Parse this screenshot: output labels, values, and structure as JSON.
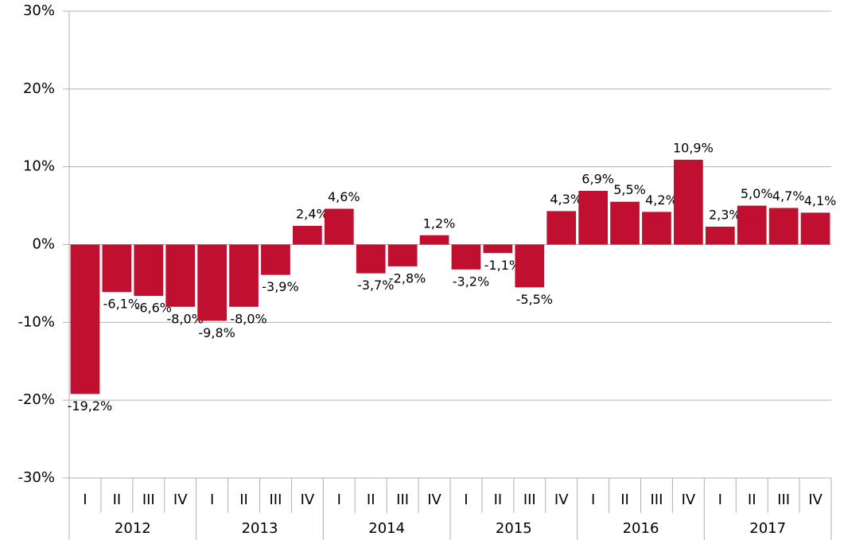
{
  "chart_data": {
    "type": "bar",
    "categories": [
      "I",
      "II",
      "III",
      "IV",
      "I",
      "II",
      "III",
      "IV",
      "I",
      "II",
      "III",
      "IV",
      "I",
      "II",
      "III",
      "IV",
      "I",
      "II",
      "III",
      "IV",
      "I",
      "II",
      "III",
      "IV"
    ],
    "groups": [
      "2012",
      "2013",
      "2014",
      "2015",
      "2016",
      "2017"
    ],
    "values": [
      -19.2,
      -6.1,
      -6.6,
      -8.0,
      -9.8,
      -8.0,
      -3.9,
      2.4,
      4.6,
      -3.7,
      -2.8,
      1.2,
      -3.2,
      -1.1,
      -5.5,
      4.3,
      6.9,
      5.5,
      4.2,
      10.9,
      2.3,
      5.0,
      4.7,
      4.1
    ],
    "value_labels": [
      "-19,2%",
      "-6,1%",
      "-6,6%",
      "-8,0%",
      "-9,8%",
      "-8,0%",
      "-3,9%",
      "2,4%",
      "4,6%",
      "-3,7%",
      "-2,8%",
      "1,2%",
      "-3,2%",
      "-1,1%",
      "-5,5%",
      "4,3%",
      "6,9%",
      "5,5%",
      "4,2%",
      "10,9%",
      "2,3%",
      "5,0%",
      "4,7%",
      "4,1%"
    ],
    "color": "#c0102f",
    "ylim": [
      -30,
      30
    ],
    "yticks": [
      {
        "value": -30,
        "label": "-30%"
      },
      {
        "value": -20,
        "label": "-20%"
      },
      {
        "value": -10,
        "label": "-10%"
      },
      {
        "value": 0,
        "label": "0%"
      },
      {
        "value": 10,
        "label": "10%"
      },
      {
        "value": 20,
        "label": "20%"
      },
      {
        "value": 30,
        "label": "30%"
      }
    ],
    "grid": true
  }
}
